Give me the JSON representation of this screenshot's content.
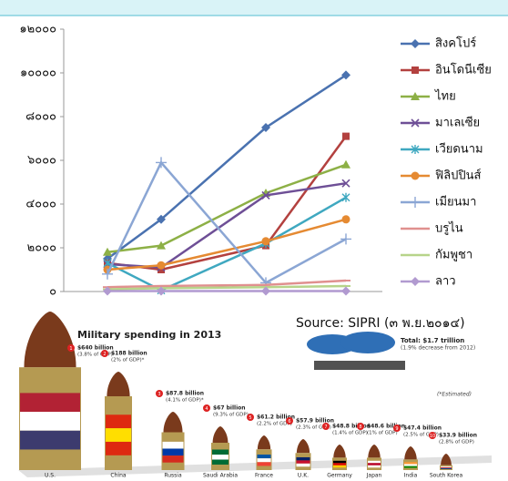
{
  "chart_data": {
    "type": "line",
    "categories": [
      null,
      null,
      null,
      null
    ],
    "ylim": [
      0,
      12000
    ],
    "yticks": [
      {
        "value": 0,
        "label": "๐"
      },
      {
        "value": 2000,
        "label": "๒๐๐๐"
      },
      {
        "value": 4000,
        "label": "๔๐๐๐"
      },
      {
        "value": 6000,
        "label": "๖๐๐๐"
      },
      {
        "value": 8000,
        "label": "๘๐๐๐"
      },
      {
        "value": 10000,
        "label": "๑๐๐๐๐"
      },
      {
        "value": 12000,
        "label": "๑๒๐๐๐"
      }
    ],
    "grid": false,
    "legend": "right",
    "series": [
      {
        "name": "สิงคโปร์",
        "color": "#4a72b0",
        "marker": "diamond",
        "values": [
          1500,
          3300,
          7500,
          9900
        ]
      },
      {
        "name": "อินโดนีเซีย",
        "color": "#b3413f",
        "marker": "square",
        "values": [
          1300,
          1000,
          2100,
          7100
        ]
      },
      {
        "name": "ไทย",
        "color": "#8db046",
        "marker": "triangle",
        "values": [
          1800,
          2100,
          4500,
          5800
        ]
      },
      {
        "name": "มาเลเซีย",
        "color": "#6e4f96",
        "marker": "x",
        "values": [
          1250,
          1100,
          4400,
          4950
        ]
      },
      {
        "name": "เวียดนาม",
        "color": "#3fa8c0",
        "marker": "star",
        "values": [
          1300,
          50,
          2200,
          4300
        ]
      },
      {
        "name": "ฟิลิปปินส์",
        "color": "#e58a32",
        "marker": "circle",
        "values": [
          1000,
          1200,
          2300,
          3300
        ]
      },
      {
        "name": "เมียนมา",
        "color": "#8ba6d4",
        "marker": "plus",
        "values": [
          800,
          5900,
          400,
          2400
        ]
      },
      {
        "name": "บรูไน",
        "color": "#e0908f",
        "marker": "dash",
        "values": [
          200,
          250,
          300,
          500
        ]
      },
      {
        "name": "กัมพูชา",
        "color": "#b7d48a",
        "marker": "dash",
        "values": [
          100,
          150,
          200,
          250
        ]
      },
      {
        "name": "ลาว",
        "color": "#b19ad0",
        "marker": "diamond",
        "values": [
          20,
          20,
          20,
          20
        ]
      }
    ]
  },
  "source": "Source: SIPRI (๓ พ.ย.๒๐๑๔)",
  "infographic": {
    "title": "Military spending in 2013",
    "total": "Total: $1.7 trillion",
    "total_note": "(1.9% decrease from 2012)",
    "note": "(*Estimated)",
    "items": [
      {
        "rank": "1",
        "amount": "$640 billion",
        "gdp": "(3.8% of GDP)",
        "country": "U.S."
      },
      {
        "rank": "2",
        "amount": "$188 billion",
        "gdp": "(2% of GDP)*",
        "country": "China"
      },
      {
        "rank": "3",
        "amount": "$87.8 billion",
        "gdp": "(4.1% of GDP)*",
        "country": "Russia"
      },
      {
        "rank": "4",
        "amount": "$67 billion",
        "gdp": "(9.3% of GDP)",
        "country": "Saudi Arabia"
      },
      {
        "rank": "5",
        "amount": "$61.2 billion",
        "gdp": "(2.2% of GDP)",
        "country": "France"
      },
      {
        "rank": "6",
        "amount": "$57.9 billion",
        "gdp": "(2.3% of GDP)",
        "country": "U.K."
      },
      {
        "rank": "7",
        "amount": "$48.8 billion",
        "gdp": "(1.4% of GDP)",
        "country": "Germany"
      },
      {
        "rank": "8",
        "amount": "$48.6 billion",
        "gdp": "(1% of GDP)",
        "country": "Japan"
      },
      {
        "rank": "9",
        "amount": "$47.4 billion",
        "gdp": "(2.5% of GDP)",
        "country": "India"
      },
      {
        "rank": "10",
        "amount": "$33.9 billion",
        "gdp": "(2.8% of GDP)",
        "country": "South Korea"
      }
    ]
  }
}
